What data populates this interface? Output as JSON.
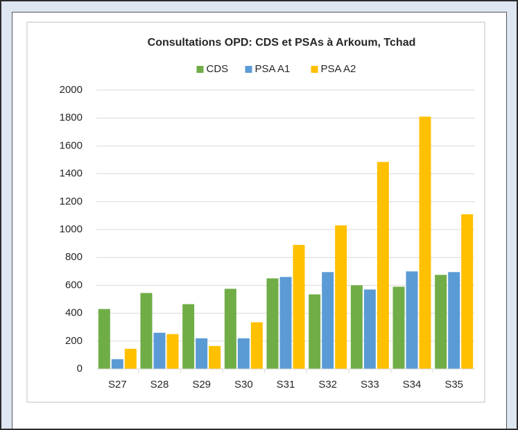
{
  "chart_data": {
    "type": "bar",
    "title": "Consultations OPD: CDS et PSAs à Arkoum, Tchad",
    "categories": [
      "S27",
      "S28",
      "S29",
      "S30",
      "S31",
      "S32",
      "S33",
      "S34",
      "S35"
    ],
    "series": [
      {
        "name": "CDS",
        "color": "#70ad47",
        "values": [
          430,
          545,
          465,
          575,
          650,
          535,
          600,
          590,
          675
        ]
      },
      {
        "name": "PSA A1",
        "color": "#5b9bd5",
        "values": [
          70,
          260,
          220,
          220,
          660,
          695,
          570,
          700,
          695
        ]
      },
      {
        "name": "PSA A2",
        "color": "#ffc000",
        "values": [
          145,
          250,
          165,
          335,
          890,
          1030,
          1485,
          1810,
          1110
        ]
      }
    ],
    "ylim": [
      0,
      2000
    ],
    "yticks": [
      0,
      200,
      400,
      600,
      800,
      1000,
      1200,
      1400,
      1600,
      1800,
      2000
    ],
    "grid": true,
    "legend": "top"
  }
}
